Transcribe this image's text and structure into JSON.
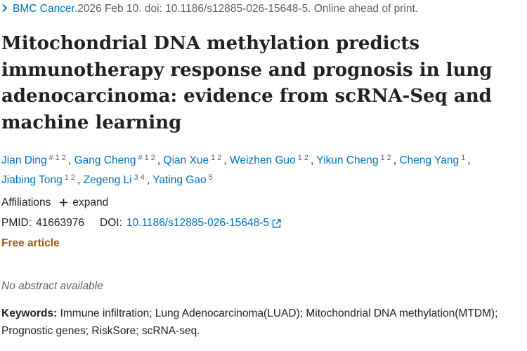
{
  "journal": {
    "name": "BMC Cancer.",
    "details": " 2026 Feb 10. doi: 10.1186/s12885-026-15648-5. Online ahead of print."
  },
  "title": "Mitochondrial DNA methylation predicts immunotherapy response and prognosis in lung adenocarcinoma: evidence from scRNA-Seq and machine learning",
  "authors": [
    {
      "name": "Jian Ding",
      "sups": [
        "#",
        "1",
        "2"
      ]
    },
    {
      "name": "Gang Cheng",
      "sups": [
        "#",
        "1",
        "2"
      ]
    },
    {
      "name": "Qian Xue",
      "sups": [
        "1",
        "2"
      ]
    },
    {
      "name": "Weizhen Guo",
      "sups": [
        "1",
        "2"
      ]
    },
    {
      "name": "Yikun Cheng",
      "sups": [
        "1",
        "2"
      ]
    },
    {
      "name": "Cheng Yang",
      "sups": [
        "1"
      ]
    },
    {
      "name": "Jiabing Tong",
      "sups": [
        "1",
        "2"
      ]
    },
    {
      "name": "Zegeng Li",
      "sups": [
        "3",
        "4"
      ]
    },
    {
      "name": "Yating Gao",
      "sups": [
        "5"
      ]
    }
  ],
  "affiliations": {
    "label": "Affiliations",
    "expand_label": "expand",
    "expand_icon": "plus-icon"
  },
  "ids": {
    "pmid_label": "PMID:",
    "pmid": "41663976",
    "doi_label": "DOI:",
    "doi": "10.1186/s12885-026-15648-5",
    "doi_icon": "external-link-icon"
  },
  "free_article": "Free article",
  "no_abstract": "No abstract available",
  "keywords": {
    "label": "Keywords:",
    "text": "Immune infiltration; Lung Adenocarcinoma(LUAD); Mitochondrial DNA methylation(MTDM); Prognostic genes; RiskSore; scRNA-seq."
  },
  "colors": {
    "link": "#0071bc",
    "free_article": "#a5590d",
    "muted": "#5b616b",
    "text": "#212121"
  }
}
